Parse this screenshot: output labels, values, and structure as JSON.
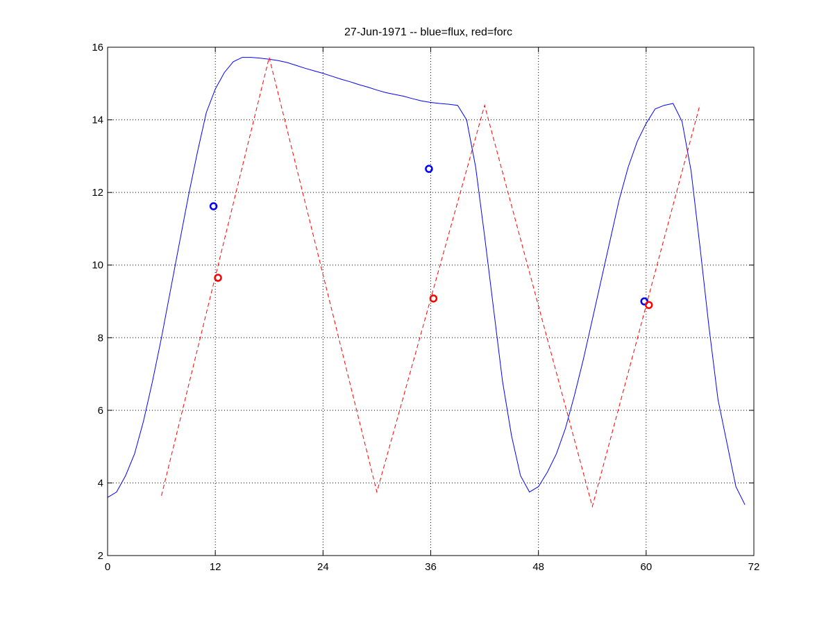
{
  "chart_data": {
    "type": "line",
    "title": "27-Jun-1971 -- blue=flux, red=forc",
    "xlabel": "",
    "ylabel": "",
    "xlim": [
      0,
      72
    ],
    "ylim": [
      2,
      16
    ],
    "xticks": [
      0,
      12,
      24,
      36,
      48,
      60,
      72
    ],
    "yticks": [
      2,
      4,
      6,
      8,
      10,
      12,
      14,
      16
    ],
    "grid": true,
    "series": [
      {
        "color": "#0000ff",
        "style": "solid",
        "x": [
          0,
          1,
          2,
          3,
          4,
          5,
          6,
          7,
          8,
          9,
          10,
          11,
          12,
          13,
          14,
          15,
          16,
          17,
          18,
          19,
          20,
          21,
          22,
          23,
          24,
          25,
          26,
          27,
          28,
          29,
          30,
          31,
          32,
          33,
          34,
          35,
          36,
          37,
          38,
          39,
          40,
          41,
          42,
          43,
          44,
          45,
          46,
          47,
          48,
          49,
          50,
          51,
          52,
          53,
          54,
          55,
          56,
          57,
          58,
          59,
          60,
          61,
          62,
          63,
          64,
          65,
          66,
          67,
          68,
          69,
          70,
          71
        ],
        "y": [
          3.6,
          3.75,
          4.2,
          4.8,
          5.7,
          6.8,
          8.0,
          9.3,
          10.6,
          11.9,
          13.1,
          14.2,
          14.85,
          15.3,
          15.6,
          15.72,
          15.72,
          15.7,
          15.67,
          15.63,
          15.58,
          15.5,
          15.42,
          15.35,
          15.28,
          15.2,
          15.12,
          15.05,
          14.97,
          14.9,
          14.82,
          14.75,
          14.7,
          14.65,
          14.58,
          14.52,
          14.48,
          14.45,
          14.43,
          14.4,
          14.0,
          12.7,
          10.8,
          8.8,
          6.8,
          5.3,
          4.2,
          3.75,
          3.9,
          4.3,
          4.8,
          5.5,
          6.4,
          7.4,
          8.5,
          9.6,
          10.7,
          11.8,
          12.7,
          13.4,
          13.9,
          14.3,
          14.4,
          14.45,
          13.95,
          12.6,
          10.5,
          8.3,
          6.3,
          5.1,
          3.9,
          3.4
        ]
      },
      {
        "color": "#ff0000",
        "style": "dashed",
        "x": [
          6,
          18,
          30,
          42,
          54,
          66
        ],
        "y": [
          3.65,
          15.72,
          3.75,
          14.4,
          3.35,
          14.42
        ]
      }
    ],
    "markers": [
      {
        "x": 11.8,
        "y": 11.62,
        "color": "#0000ff",
        "shape": "circle"
      },
      {
        "x": 35.8,
        "y": 12.65,
        "color": "#0000ff",
        "shape": "circle"
      },
      {
        "x": 59.8,
        "y": 9.0,
        "color": "#0000ff",
        "shape": "circle"
      },
      {
        "x": 12.3,
        "y": 9.65,
        "color": "#ff0000",
        "shape": "circle"
      },
      {
        "x": 36.3,
        "y": 9.08,
        "color": "#ff0000",
        "shape": "circle"
      },
      {
        "x": 60.3,
        "y": 8.9,
        "color": "#ff0000",
        "shape": "circle"
      }
    ]
  }
}
